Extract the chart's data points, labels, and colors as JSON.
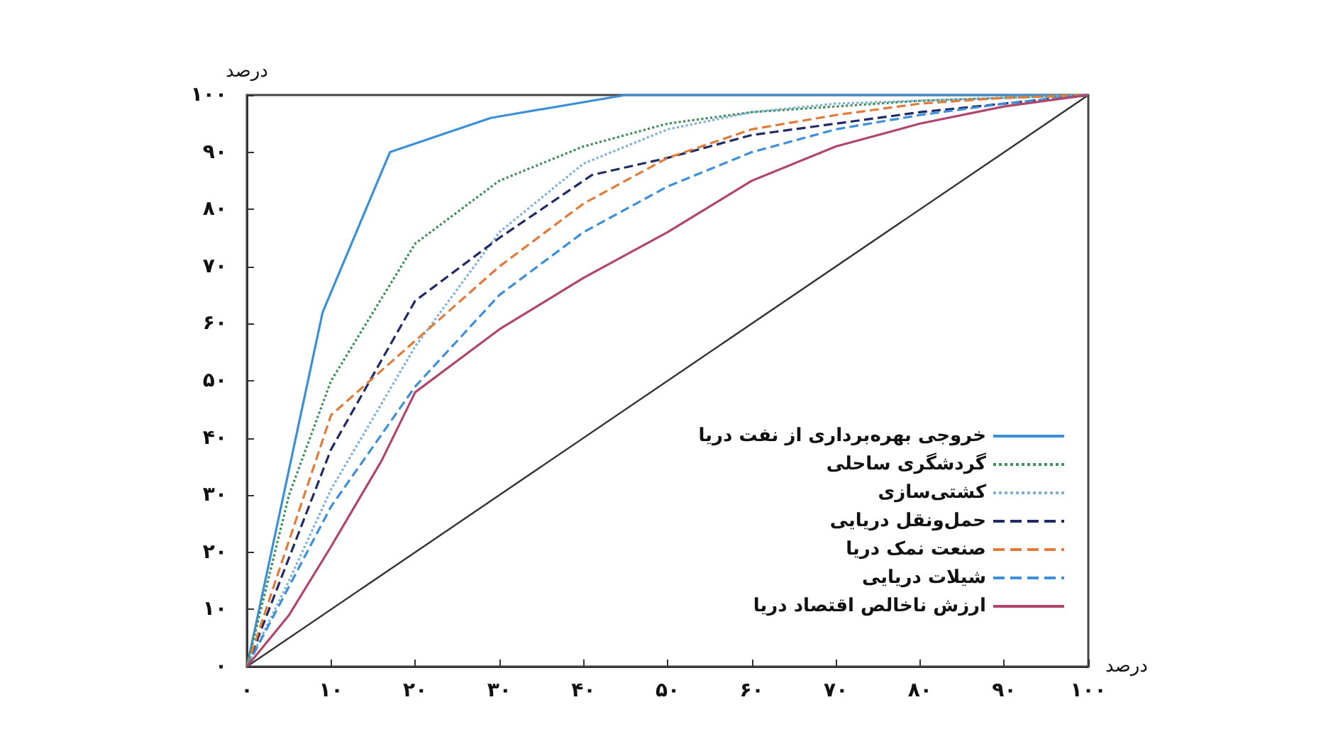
{
  "chart_data": {
    "type": "line",
    "xlabel": "درصد",
    "ylabel": "درصد",
    "xlim": [
      0,
      100
    ],
    "ylim": [
      0,
      100
    ],
    "xticks": [
      {
        "value": 0,
        "label": "۰"
      },
      {
        "value": 10,
        "label": "۱۰"
      },
      {
        "value": 20,
        "label": "۲۰"
      },
      {
        "value": 30,
        "label": "۳۰"
      },
      {
        "value": 40,
        "label": "۴۰"
      },
      {
        "value": 50,
        "label": "۵۰"
      },
      {
        "value": 60,
        "label": "۶۰"
      },
      {
        "value": 70,
        "label": "۷۰"
      },
      {
        "value": 80,
        "label": "۸۰"
      },
      {
        "value": 90,
        "label": "۹۰"
      },
      {
        "value": 100,
        "label": "۱۰۰"
      }
    ],
    "yticks": [
      {
        "value": 0,
        "label": "۰"
      },
      {
        "value": 10,
        "label": "۱۰"
      },
      {
        "value": 20,
        "label": "۲۰"
      },
      {
        "value": 30,
        "label": "۳۰"
      },
      {
        "value": 40,
        "label": "۴۰"
      },
      {
        "value": 50,
        "label": "۵۰"
      },
      {
        "value": 60,
        "label": "۶۰"
      },
      {
        "value": 70,
        "label": "۷۰"
      },
      {
        "value": 80,
        "label": "۸۰"
      },
      {
        "value": 90,
        "label": "۹۰"
      },
      {
        "value": 100,
        "label": "۱۰۰"
      }
    ],
    "grid": false,
    "legend": "bottom right",
    "marker": "none",
    "series": [
      {
        "name": "خروجی بهره‌برداری از نفت دریا",
        "color": "#3a8fd6",
        "line_style": "solid",
        "x": [
          0,
          9,
          17,
          29,
          45,
          100
        ],
        "values": [
          0,
          62,
          90,
          96,
          100,
          100
        ]
      },
      {
        "name": "گردشگری ساحلی",
        "color": "#3f8f5a",
        "line_style": "dotted",
        "x": [
          0,
          5,
          10,
          20,
          30,
          40,
          50,
          60,
          70,
          80,
          90,
          100
        ],
        "values": [
          0,
          30,
          50,
          74,
          85,
          91,
          95,
          97,
          98,
          99,
          99.5,
          100
        ]
      },
      {
        "name": "کشتی‌سازی",
        "color": "#7fb0d8",
        "line_style": "dotted",
        "x": [
          0,
          5,
          10,
          20,
          30,
          40,
          50,
          60,
          70,
          80,
          90,
          100
        ],
        "values": [
          0,
          15,
          31,
          56,
          76,
          88,
          94,
          97,
          98.5,
          99,
          99.5,
          100
        ]
      },
      {
        "name": "حمل‌ونقل دریایی",
        "color": "#1f2a66",
        "line_style": "dashed",
        "x": [
          0,
          10,
          20,
          30,
          41,
          50,
          60,
          70,
          80,
          90,
          100
        ],
        "values": [
          0,
          38,
          64,
          75,
          86,
          89,
          93,
          95,
          97,
          98.5,
          100
        ]
      },
      {
        "name": "صنعت نمک دریا",
        "color": "#e07b39",
        "line_style": "dashed",
        "x": [
          0,
          10,
          20,
          30,
          40,
          50,
          60,
          70,
          80,
          90,
          100
        ],
        "values": [
          0,
          44,
          57,
          70,
          81,
          89,
          94,
          96.5,
          98.5,
          99.5,
          100
        ]
      },
      {
        "name": "شیلات دریایی",
        "color": "#3d8fd9",
        "line_style": "dashed",
        "x": [
          0,
          10,
          20,
          30,
          40,
          50,
          60,
          70,
          80,
          90,
          100
        ],
        "values": [
          0,
          28,
          49,
          65,
          76,
          84,
          90,
          94,
          96.5,
          98.5,
          100
        ]
      },
      {
        "name": "ارزش ناخالص اقتصاد دریا",
        "color": "#b0456e",
        "line_style": "solid",
        "x": [
          0,
          5,
          10,
          16,
          20,
          30,
          40,
          50,
          60,
          70,
          80,
          90,
          100
        ],
        "values": [
          0,
          9,
          21,
          36,
          48,
          59,
          68,
          76,
          85,
          91,
          95,
          98,
          100
        ]
      },
      {
        "color": "#333333",
        "line_style": "solid",
        "x": [
          0,
          100
        ],
        "values": [
          0,
          100
        ]
      }
    ]
  }
}
